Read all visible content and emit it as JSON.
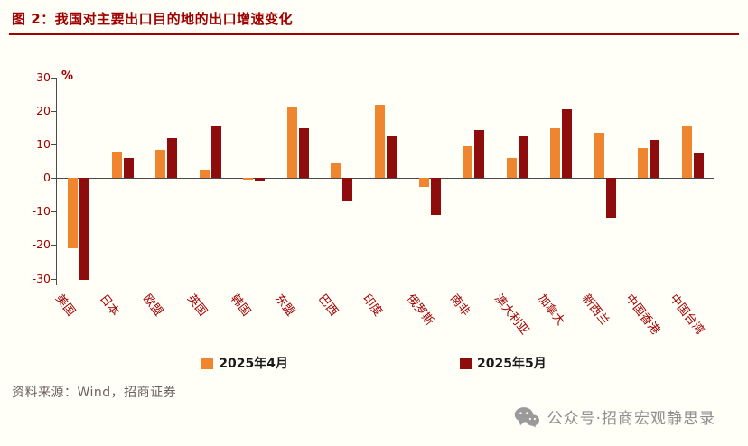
{
  "title": "图 2：我国对主要出口目的地的出口增速变化",
  "colors": {
    "accent": "#A00000",
    "april_orange": "#F0852F",
    "may_red": "#8E0C0C"
  },
  "chart_data": {
    "type": "bar",
    "title": "我国对主要出口目的地的出口增速变化",
    "ylabel": "%",
    "xlabel": "",
    "categories": [
      "美国",
      "日本",
      "欧盟",
      "英国",
      "韩国",
      "东盟",
      "巴西",
      "印度",
      "俄罗斯",
      "南非",
      "澳大利亚",
      "加拿大",
      "新西兰",
      "中国香港",
      "中国台湾"
    ],
    "series": [
      {
        "name": "2025年4月",
        "color": "#F0852F",
        "values": [
          -21,
          8,
          8.5,
          2.5,
          -0.5,
          21,
          4.5,
          22,
          -2.5,
          9.5,
          6,
          15,
          13.5,
          9,
          15.5
        ]
      },
      {
        "name": "2025年5月",
        "color": "#8E0C0C",
        "values": [
          -30.5,
          6,
          12,
          15.5,
          -1,
          15,
          -7,
          12.5,
          -11,
          14.5,
          12.5,
          20.5,
          -12,
          11.5,
          7.5
        ]
      }
    ],
    "ylim": [
      -32,
      30
    ],
    "yticks": [
      30,
      20,
      10,
      0,
      -10,
      -20,
      -30
    ],
    "grid": false,
    "legend_position": "bottom"
  },
  "footer": {
    "source": "资料来源：Wind，招商证券",
    "watermark": "公众号·招商宏观静思录"
  }
}
